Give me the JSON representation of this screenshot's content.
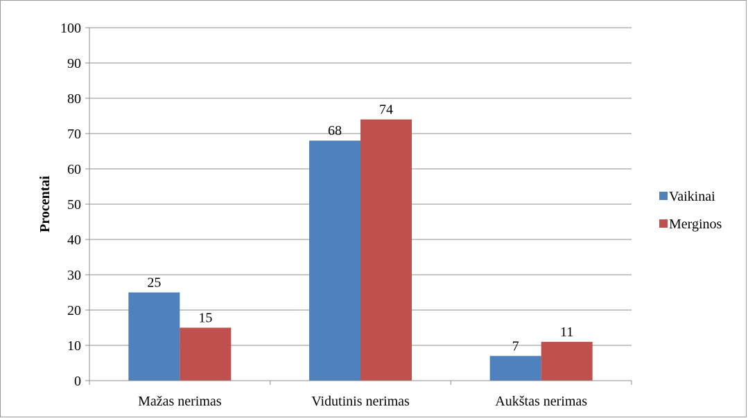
{
  "chart_data": {
    "type": "bar",
    "title": "",
    "xlabel": "",
    "ylabel": "Procentai",
    "ylim": [
      0,
      100
    ],
    "yticks": [
      0,
      10,
      20,
      30,
      40,
      50,
      60,
      70,
      80,
      90,
      100
    ],
    "grid": true,
    "legend_position": "right",
    "categories": [
      "Mažas nerimas",
      "Vidutinis nerimas",
      "Aukštas nerimas"
    ],
    "series": [
      {
        "name": "Vaikinai",
        "color": "#4f81bd",
        "values": [
          25,
          68,
          7
        ]
      },
      {
        "name": "Merginos",
        "color": "#c0504d",
        "values": [
          15,
          74,
          11
        ]
      }
    ]
  },
  "colors": {
    "grid": "#8c8c8c",
    "axis": "#8c8c8c"
  }
}
